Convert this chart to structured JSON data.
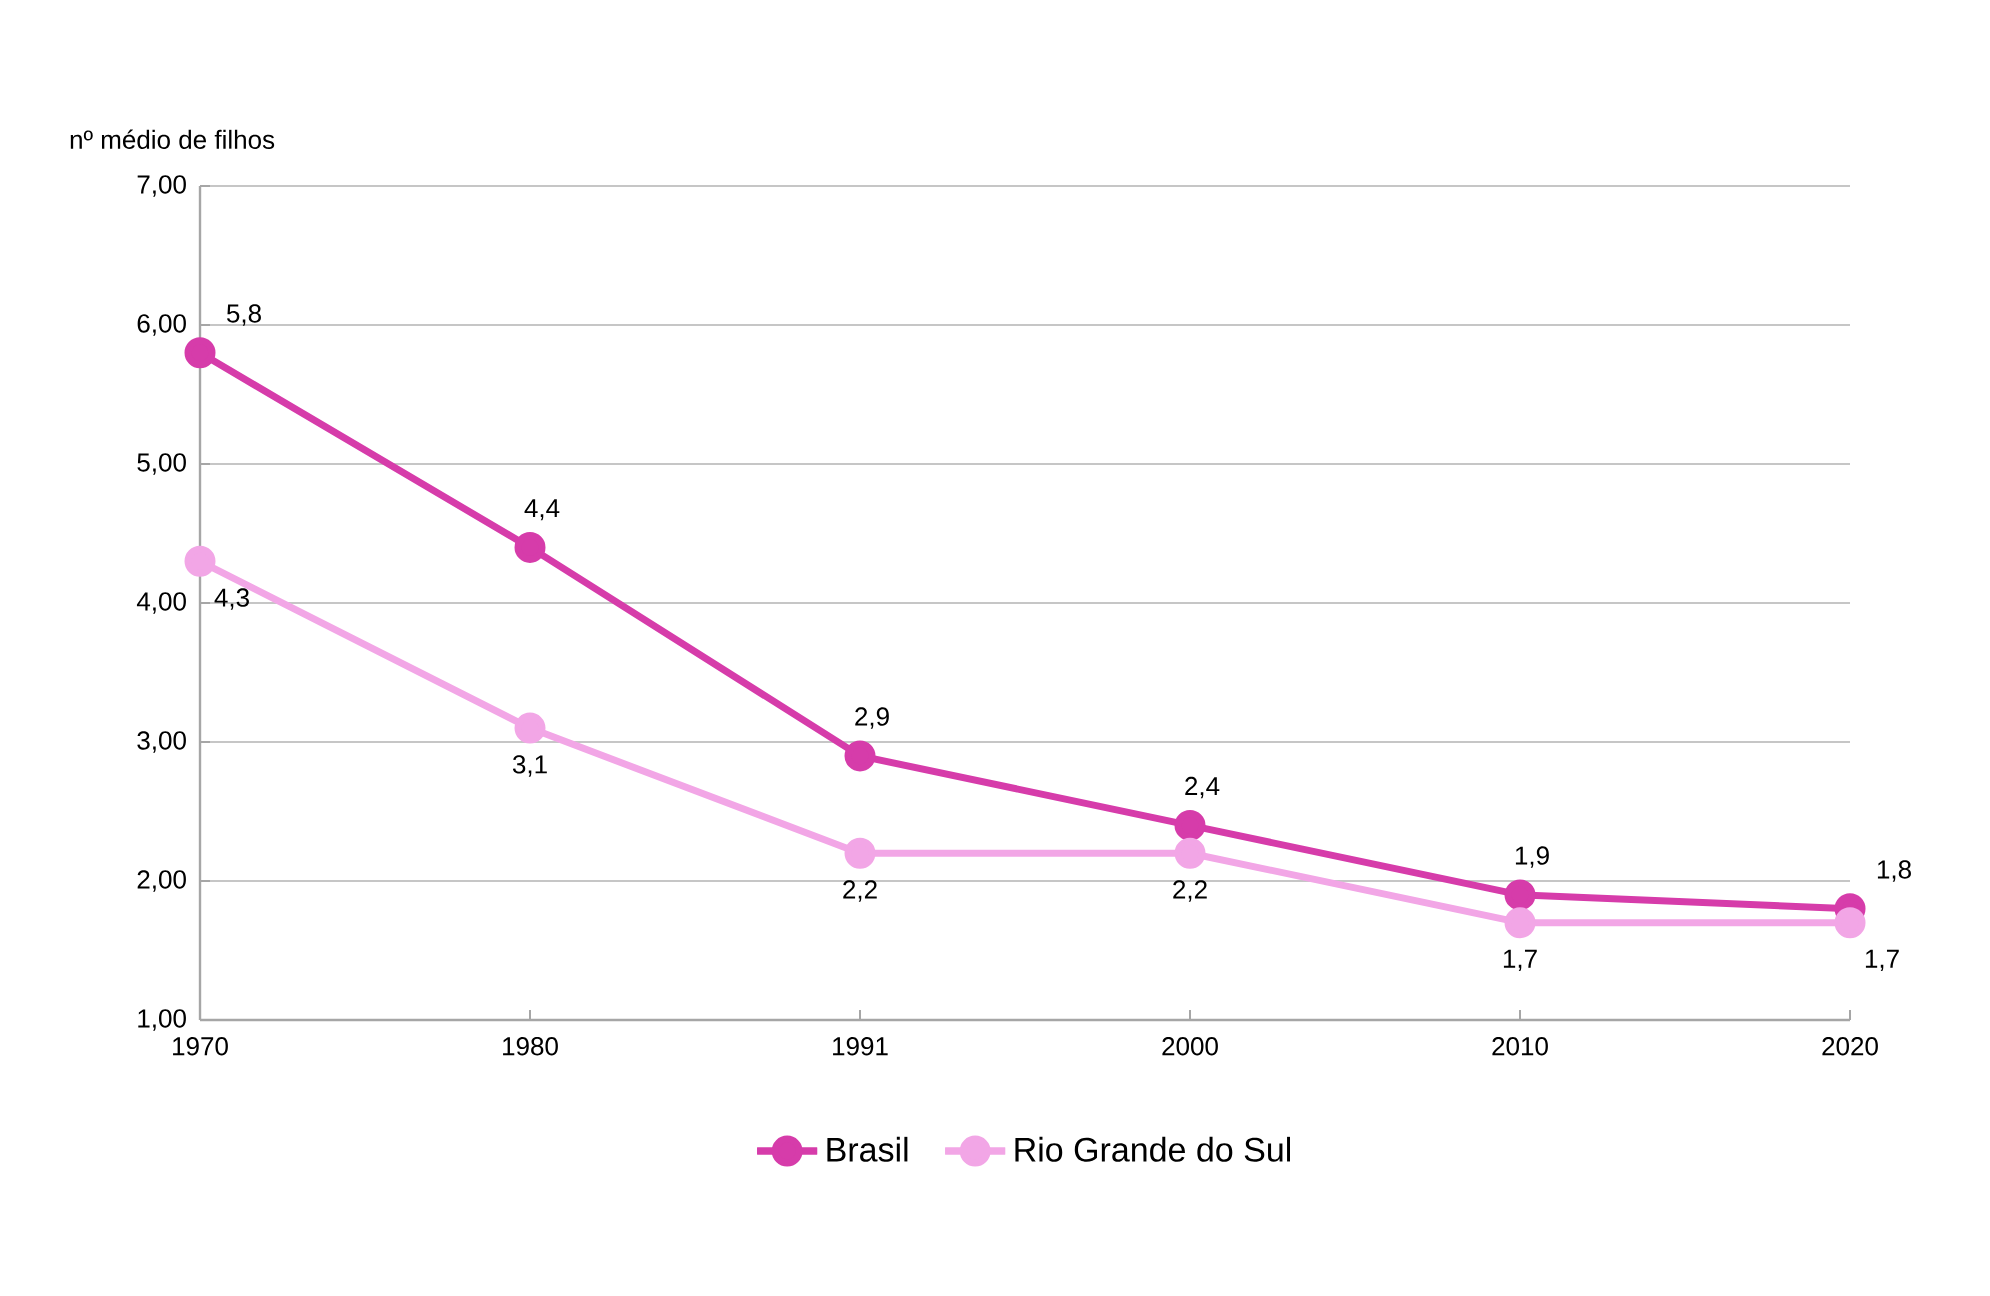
{
  "chart_data": {
    "type": "line",
    "ylabel": "nº médio de filhos",
    "categories": [
      "1970",
      "1980",
      "1991",
      "2000",
      "2010",
      "2020"
    ],
    "series": [
      {
        "name": "Brasil",
        "color": "#d63caa",
        "values": [
          5.8,
          4.4,
          2.9,
          2.4,
          1.9,
          1.8
        ],
        "value_labels": [
          "5,8",
          "4,4",
          "2,9",
          "2,4",
          "1,9",
          "1,8"
        ]
      },
      {
        "name": "Rio Grande do Sul",
        "color": "#f2a6e6",
        "values": [
          4.3,
          3.1,
          2.2,
          2.2,
          1.7,
          1.7
        ],
        "value_labels": [
          "4,3",
          "3,1",
          "2,2",
          "2,2",
          "1,7",
          "1,7"
        ]
      }
    ],
    "ylim": [
      1,
      7
    ],
    "yticks": [
      {
        "value": 1,
        "label": "1,00"
      },
      {
        "value": 2,
        "label": "2,00"
      },
      {
        "value": 3,
        "label": "3,00"
      },
      {
        "value": 4,
        "label": "4,00"
      },
      {
        "value": 5,
        "label": "5,00"
      },
      {
        "value": 6,
        "label": "6,00"
      },
      {
        "value": 7,
        "label": "7,00"
      }
    ],
    "grid": "y",
    "legend": "bottom",
    "marker": "circle",
    "line_style": "solid"
  }
}
